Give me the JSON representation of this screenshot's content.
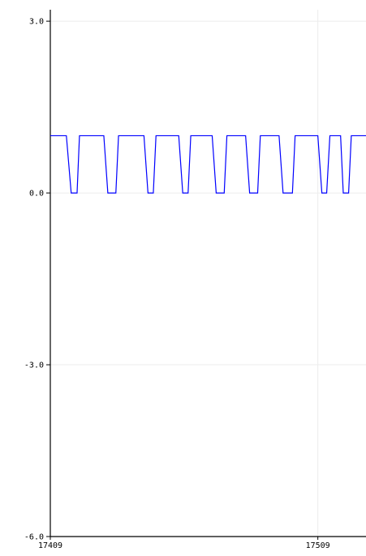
{
  "chart_data": {
    "type": "line",
    "title": "",
    "xlabel": "",
    "ylabel": "",
    "xlim": [
      17409,
      17527
    ],
    "ylim": [
      -6.0,
      3.2
    ],
    "x_ticks": [
      17409,
      17509
    ],
    "x_tick_labels": [
      "17409",
      "17509"
    ],
    "y_ticks": [
      3.0,
      0.0,
      -3.0,
      -6.0
    ],
    "y_tick_labels": [
      "3.0",
      "0.0",
      "-3.0",
      "-6.0"
    ],
    "grid": true,
    "legend": "none",
    "series": [
      {
        "color": "#0000ff",
        "x": [
          17409,
          17415,
          17416.8,
          17419,
          17419.9,
          17421,
          17429,
          17430.5,
          17433.5,
          17434.5,
          17444,
          17445.5,
          17447.5,
          17448.5,
          17457,
          17458.5,
          17460.5,
          17461.5,
          17469.5,
          17471,
          17474,
          17475,
          17482,
          17483.5,
          17486.5,
          17487.5,
          17494.5,
          17496,
          17499.5,
          17500.5,
          17509,
          17510.5,
          17512.3,
          17513.5,
          17517.5,
          17518.5,
          17520.5,
          17521.5,
          17527
        ],
        "y": [
          1.0,
          1.0,
          0.0,
          0.0,
          1.0,
          1.0,
          1.0,
          0.0,
          0.0,
          1.0,
          1.0,
          0.0,
          0.0,
          1.0,
          1.0,
          0.0,
          0.0,
          1.0,
          1.0,
          0.0,
          0.0,
          1.0,
          1.0,
          0.0,
          0.0,
          1.0,
          1.0,
          0.0,
          0.0,
          1.0,
          1.0,
          0.0,
          0.0,
          1.0,
          1.0,
          0.0,
          0.0,
          1.0,
          1.0
        ]
      }
    ]
  }
}
